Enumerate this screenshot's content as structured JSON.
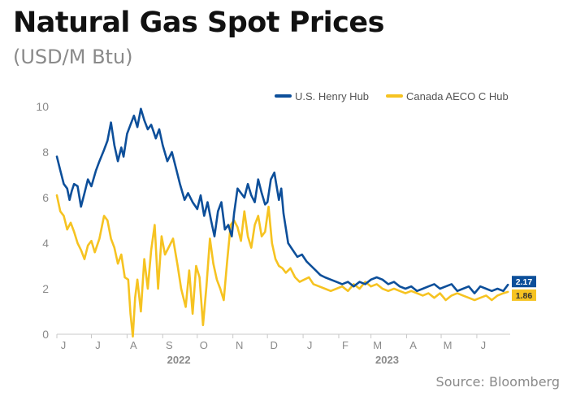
{
  "header": {
    "title": "Natural Gas Spot Prices",
    "subtitle": "(USD/M Btu)"
  },
  "footer": {
    "source": "Source: Bloomberg"
  },
  "chart_data": {
    "type": "line",
    "title": "Natural Gas Spot Prices",
    "subtitle": "(USD/M Btu)",
    "ylim": [
      0,
      10
    ],
    "yticks": [
      0,
      2,
      4,
      6,
      8,
      10
    ],
    "xlim": [
      "2022-06-01",
      "2023-06-30"
    ],
    "x_ticks": [
      {
        "label": "J",
        "date": "2022-06-01"
      },
      {
        "label": "J",
        "date": "2022-07-01"
      },
      {
        "label": "A",
        "date": "2022-08-01"
      },
      {
        "label": "S",
        "date": "2022-09-01"
      },
      {
        "label": "O",
        "date": "2022-10-01"
      },
      {
        "label": "N",
        "date": "2022-11-01"
      },
      {
        "label": "D",
        "date": "2022-12-01"
      },
      {
        "label": "J",
        "date": "2023-01-01"
      },
      {
        "label": "F",
        "date": "2023-02-01"
      },
      {
        "label": "M",
        "date": "2023-03-01"
      },
      {
        "label": "A",
        "date": "2023-04-01"
      },
      {
        "label": "M",
        "date": "2023-05-01"
      },
      {
        "label": "J",
        "date": "2023-06-01"
      }
    ],
    "year_labels": [
      {
        "label": "2022",
        "date": "2022-09-15"
      },
      {
        "label": "2023",
        "date": "2023-03-15"
      }
    ],
    "grid": false,
    "legend_position": "top-right",
    "series": [
      {
        "name": "U.S. Henry Hub",
        "color": "#0d4f9a",
        "end_label": "2.17",
        "x": [
          "2022-06-01",
          "2022-06-04",
          "2022-06-07",
          "2022-06-10",
          "2022-06-12",
          "2022-06-14",
          "2022-06-16",
          "2022-06-19",
          "2022-06-22",
          "2022-06-25",
          "2022-06-28",
          "2022-07-01",
          "2022-07-05",
          "2022-07-08",
          "2022-07-12",
          "2022-07-15",
          "2022-07-18",
          "2022-07-21",
          "2022-07-24",
          "2022-07-27",
          "2022-07-29",
          "2022-08-01",
          "2022-08-04",
          "2022-08-07",
          "2022-08-10",
          "2022-08-13",
          "2022-08-16",
          "2022-08-19",
          "2022-08-22",
          "2022-08-24",
          "2022-08-26",
          "2022-08-29",
          "2022-09-01",
          "2022-09-05",
          "2022-09-09",
          "2022-09-13",
          "2022-09-16",
          "2022-09-20",
          "2022-09-23",
          "2022-09-27",
          "2022-10-01",
          "2022-10-04",
          "2022-10-07",
          "2022-10-10",
          "2022-10-13",
          "2022-10-16",
          "2022-10-19",
          "2022-10-22",
          "2022-10-25",
          "2022-10-28",
          "2022-10-31",
          "2022-11-02",
          "2022-11-05",
          "2022-11-08",
          "2022-11-11",
          "2022-11-14",
          "2022-11-17",
          "2022-11-20",
          "2022-11-23",
          "2022-11-26",
          "2022-11-29",
          "2022-12-01",
          "2022-12-04",
          "2022-12-07",
          "2022-12-09",
          "2022-12-11",
          "2022-12-13",
          "2022-12-15",
          "2022-12-19",
          "2022-12-23",
          "2022-12-27",
          "2022-12-31",
          "2023-01-04",
          "2023-01-08",
          "2023-01-12",
          "2023-01-16",
          "2023-01-20",
          "2023-01-25",
          "2023-01-30",
          "2023-02-04",
          "2023-02-09",
          "2023-02-14",
          "2023-02-19",
          "2023-02-24",
          "2023-03-01",
          "2023-03-06",
          "2023-03-11",
          "2023-03-16",
          "2023-03-21",
          "2023-03-26",
          "2023-03-31",
          "2023-04-05",
          "2023-04-10",
          "2023-04-15",
          "2023-04-20",
          "2023-04-25",
          "2023-04-30",
          "2023-05-05",
          "2023-05-10",
          "2023-05-15",
          "2023-05-20",
          "2023-05-25",
          "2023-05-30",
          "2023-06-04",
          "2023-06-09",
          "2023-06-14",
          "2023-06-19",
          "2023-06-24",
          "2023-06-28"
        ],
        "values": [
          7.8,
          7.2,
          6.6,
          6.4,
          5.9,
          6.3,
          6.6,
          6.5,
          5.6,
          6.2,
          6.8,
          6.5,
          7.2,
          7.6,
          8.1,
          8.5,
          9.3,
          8.3,
          7.6,
          8.2,
          7.8,
          8.8,
          9.2,
          9.6,
          9.1,
          9.9,
          9.4,
          9.0,
          9.2,
          8.9,
          8.6,
          9.0,
          8.3,
          7.6,
          8.0,
          7.2,
          6.6,
          5.9,
          6.2,
          5.8,
          5.5,
          6.1,
          5.2,
          5.8,
          5.0,
          4.3,
          5.4,
          5.8,
          4.6,
          4.8,
          4.3,
          5.3,
          6.4,
          6.2,
          6.0,
          6.6,
          6.1,
          5.8,
          6.8,
          6.2,
          5.7,
          5.8,
          6.8,
          7.1,
          6.5,
          5.9,
          6.4,
          5.3,
          4.0,
          3.7,
          3.4,
          3.5,
          3.2,
          3.0,
          2.8,
          2.6,
          2.5,
          2.4,
          2.3,
          2.2,
          2.3,
          2.1,
          2.3,
          2.2,
          2.4,
          2.5,
          2.4,
          2.2,
          2.3,
          2.1,
          2.0,
          2.1,
          1.9,
          2.0,
          2.1,
          2.2,
          2.0,
          2.1,
          2.2,
          1.9,
          2.0,
          2.1,
          1.8,
          2.1,
          2.0,
          1.9,
          2.0,
          1.9,
          2.17
        ]
      },
      {
        "name": "Canada AECO C Hub",
        "color": "#f6c321",
        "end_label": "1.86",
        "x": [
          "2022-06-01",
          "2022-06-04",
          "2022-06-07",
          "2022-06-10",
          "2022-06-13",
          "2022-06-16",
          "2022-06-19",
          "2022-06-22",
          "2022-06-25",
          "2022-06-28",
          "2022-07-01",
          "2022-07-04",
          "2022-07-08",
          "2022-07-12",
          "2022-07-15",
          "2022-07-18",
          "2022-07-21",
          "2022-07-24",
          "2022-07-27",
          "2022-07-30",
          "2022-08-02",
          "2022-08-04",
          "2022-08-06",
          "2022-08-08",
          "2022-08-10",
          "2022-08-13",
          "2022-08-16",
          "2022-08-19",
          "2022-08-22",
          "2022-08-25",
          "2022-08-28",
          "2022-08-31",
          "2022-09-03",
          "2022-09-06",
          "2022-09-10",
          "2022-09-14",
          "2022-09-17",
          "2022-09-21",
          "2022-09-24",
          "2022-09-27",
          "2022-09-30",
          "2022-10-03",
          "2022-10-06",
          "2022-10-09",
          "2022-10-12",
          "2022-10-15",
          "2022-10-18",
          "2022-10-21",
          "2022-10-24",
          "2022-10-27",
          "2022-10-30",
          "2022-11-02",
          "2022-11-05",
          "2022-11-08",
          "2022-11-11",
          "2022-11-14",
          "2022-11-17",
          "2022-11-20",
          "2022-11-23",
          "2022-11-26",
          "2022-11-29",
          "2022-12-02",
          "2022-12-05",
          "2022-12-08",
          "2022-12-11",
          "2022-12-14",
          "2022-12-17",
          "2022-12-21",
          "2022-12-25",
          "2022-12-29",
          "2023-01-02",
          "2023-01-06",
          "2023-01-10",
          "2023-01-15",
          "2023-01-20",
          "2023-01-25",
          "2023-01-30",
          "2023-02-04",
          "2023-02-09",
          "2023-02-14",
          "2023-02-19",
          "2023-02-24",
          "2023-03-01",
          "2023-03-06",
          "2023-03-11",
          "2023-03-16",
          "2023-03-21",
          "2023-03-26",
          "2023-03-31",
          "2023-04-05",
          "2023-04-10",
          "2023-04-15",
          "2023-04-20",
          "2023-04-25",
          "2023-04-30",
          "2023-05-05",
          "2023-05-10",
          "2023-05-15",
          "2023-05-20",
          "2023-05-25",
          "2023-05-30",
          "2023-06-04",
          "2023-06-09",
          "2023-06-14",
          "2023-06-19",
          "2023-06-24",
          "2023-06-28"
        ],
        "values": [
          6.1,
          5.4,
          5.2,
          4.6,
          4.9,
          4.5,
          4.0,
          3.7,
          3.3,
          3.9,
          4.1,
          3.6,
          4.2,
          5.2,
          5.0,
          4.2,
          3.8,
          3.1,
          3.5,
          2.5,
          2.4,
          0.9,
          -0.1,
          1.6,
          2.4,
          1.0,
          3.3,
          2.0,
          3.7,
          4.8,
          2.0,
          4.3,
          3.5,
          3.8,
          4.2,
          3.0,
          2.0,
          1.2,
          2.8,
          0.9,
          3.0,
          2.5,
          0.4,
          2.1,
          4.2,
          3.1,
          2.4,
          2.0,
          1.5,
          3.2,
          4.8,
          5.0,
          4.7,
          4.1,
          5.4,
          4.3,
          3.8,
          4.8,
          5.2,
          4.3,
          4.5,
          5.6,
          4.0,
          3.3,
          3.0,
          2.9,
          2.7,
          2.9,
          2.5,
          2.3,
          2.4,
          2.5,
          2.2,
          2.1,
          2.0,
          1.9,
          2.0,
          2.1,
          1.9,
          2.2,
          2.0,
          2.3,
          2.1,
          2.2,
          2.0,
          1.9,
          2.0,
          1.9,
          1.8,
          1.9,
          1.8,
          1.7,
          1.8,
          1.6,
          1.8,
          1.5,
          1.7,
          1.8,
          1.7,
          1.6,
          1.5,
          1.6,
          1.7,
          1.5,
          1.7,
          1.8,
          1.86
        ]
      }
    ]
  }
}
